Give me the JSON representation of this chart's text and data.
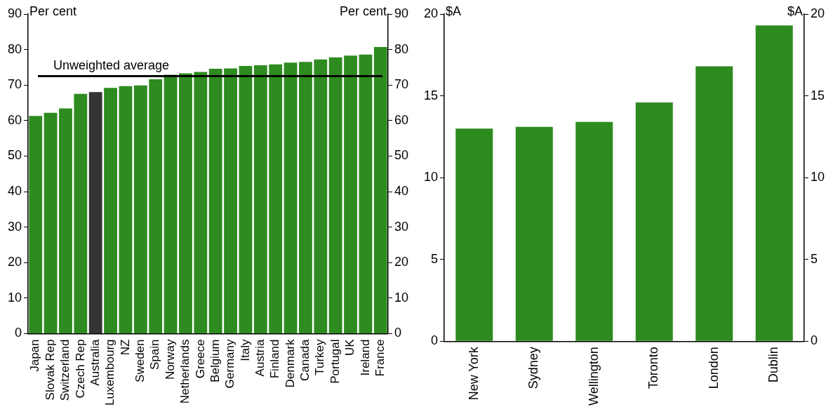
{
  "chart_data": [
    {
      "type": "bar",
      "categories": [
        "Japan",
        "Slovak Rep",
        "Switzerland",
        "Czech Rep",
        "Australia",
        "Luxembourg",
        "NZ",
        "Sweden",
        "Spain",
        "Norway",
        "Netherlands",
        "Greece",
        "Belgium",
        "Germany",
        "Italy",
        "Austria",
        "Finland",
        "Denmark",
        "Canada",
        "Turkey",
        "Portugal",
        "UK",
        "Ireland",
        "France"
      ],
      "values": [
        61.3,
        62.2,
        63.4,
        67.5,
        68.0,
        69.2,
        69.7,
        69.9,
        71.6,
        72.9,
        73.3,
        73.7,
        74.6,
        74.7,
        75.4,
        75.6,
        75.8,
        76.3,
        76.5,
        77.2,
        77.8,
        78.3,
        78.6,
        80.7
      ],
      "colors": [
        "#2e8b1f",
        "#2e8b1f",
        "#2e8b1f",
        "#2e8b1f",
        "#333333",
        "#2e8b1f",
        "#2e8b1f",
        "#2e8b1f",
        "#2e8b1f",
        "#2e8b1f",
        "#2e8b1f",
        "#2e8b1f",
        "#2e8b1f",
        "#2e8b1f",
        "#2e8b1f",
        "#2e8b1f",
        "#2e8b1f",
        "#2e8b1f",
        "#2e8b1f",
        "#2e8b1f",
        "#2e8b1f",
        "#2e8b1f",
        "#2e8b1f",
        "#2e8b1f"
      ],
      "ylabel": "Per cent",
      "y2label": "Per cent",
      "ylim": [
        0,
        90
      ],
      "yticks": [
        0,
        10,
        20,
        30,
        40,
        50,
        60,
        70,
        80,
        90
      ],
      "y2lim": [
        0,
        90
      ],
      "y2ticks": [
        0,
        10,
        20,
        30,
        40,
        50,
        60,
        70,
        80,
        90
      ],
      "ref_lines": [
        {
          "axis": "y",
          "value": 72.5,
          "label": "Unweighted average",
          "color": "#000000"
        }
      ],
      "grid": false,
      "legend": false
    },
    {
      "type": "bar",
      "categories": [
        "New York",
        "Sydney",
        "Wellington",
        "Toronto",
        "London",
        "Dublin"
      ],
      "values": [
        13.0,
        13.1,
        13.4,
        14.6,
        16.8,
        19.3
      ],
      "color": "#2e8b1f",
      "ylabel": "$A",
      "y2label": "$A",
      "ylim": [
        0,
        20
      ],
      "yticks": [
        0,
        5,
        10,
        15,
        20
      ],
      "y2lim": [
        0,
        20
      ],
      "y2ticks": [
        0,
        5,
        10,
        15,
        20
      ],
      "grid": false,
      "legend": false
    }
  ]
}
